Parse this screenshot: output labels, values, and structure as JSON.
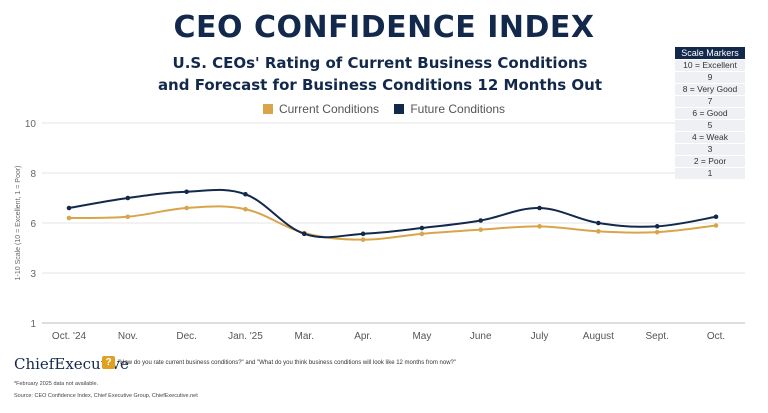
{
  "title": "CEO CONFIDENCE INDEX",
  "subtitle_line1": "U.S. CEOs' Rating of Current Business Conditions",
  "subtitle_line2": "and Forecast for Business Conditions 12 Months Out",
  "scale_markers": {
    "title": "Scale Markers",
    "items": [
      "10 = Excellent",
      "9",
      "8 = Very Good",
      "7",
      "6 = Good",
      "5",
      "4 = Weak",
      "3",
      "2 = Poor",
      "1"
    ]
  },
  "brand": "ChiefExecutive",
  "question": "\"How do you rate current business conditions?\" and \"What do you think business conditions will look like 12 months from now?\"",
  "footnote": "*February 2025 data not available.",
  "source": "Source: CEO Confidence Index, Chief Executive Group, ChiefExecutive.net",
  "chart_data": {
    "type": "line",
    "ylabel": "1-10 Scale (10 = Excellent, 1 = Poor)",
    "ytick_labels": [
      "10",
      "8",
      "6",
      "3",
      "1"
    ],
    "categories": [
      "Oct. '24",
      "Nov.",
      "Dec.",
      "Jan. '25",
      "Mar.",
      "Apr.",
      "May",
      "June",
      "July",
      "August",
      "Sept.",
      "Oct."
    ],
    "series": [
      {
        "name": "Current Conditions",
        "color": "#d9a54a",
        "values": [
          6.2,
          6.25,
          6.6,
          6.55,
          5.4,
          5.0,
          5.35,
          5.6,
          5.8,
          5.5,
          5.45,
          5.85
        ]
      },
      {
        "name": "Future Conditions",
        "color": "#13294b",
        "values": [
          6.6,
          7.0,
          7.25,
          7.15,
          5.35,
          5.35,
          5.7,
          6.1,
          6.6,
          6.0,
          5.8,
          6.25
        ]
      }
    ],
    "grid": true,
    "legend": "top"
  }
}
